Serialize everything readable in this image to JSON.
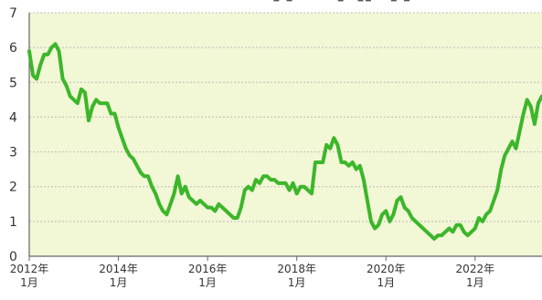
{
  "colors": {
    "plot_background": "#f2f7d6",
    "line": "#3cb62a",
    "grid": "#bdbdbd",
    "axis": "#666666"
  },
  "chart_data": {
    "type": "line",
    "title": "",
    "xlabel": "",
    "ylabel": "",
    "ylim": [
      0,
      7
    ],
    "xlim": [
      "2012-01",
      "2023-07"
    ],
    "yticks": [
      0,
      1,
      2,
      3,
      4,
      5,
      6,
      7
    ],
    "xticks": [
      {
        "year": "2012年",
        "month": "1月",
        "x": "2012-01"
      },
      {
        "year": "2014年",
        "month": "1月",
        "x": "2014-01"
      },
      {
        "year": "2016年",
        "month": "1月",
        "x": "2016-01"
      },
      {
        "year": "2018年",
        "month": "1月",
        "x": "2018-01"
      },
      {
        "year": "2020年",
        "month": "1月",
        "x": "2020-01"
      },
      {
        "year": "2022年",
        "month": "1月",
        "x": "2022-01"
      }
    ],
    "grid": true,
    "series": [
      {
        "x": [
          "2012-01",
          "2012-02",
          "2012-03",
          "2012-04",
          "2012-05",
          "2012-06",
          "2012-07",
          "2012-08",
          "2012-09",
          "2012-10",
          "2012-11",
          "2012-12",
          "2013-01",
          "2013-02",
          "2013-03",
          "2013-04",
          "2013-05",
          "2013-06",
          "2013-07",
          "2013-08",
          "2013-09",
          "2013-10",
          "2013-11",
          "2013-12",
          "2014-01",
          "2014-02",
          "2014-03",
          "2014-04",
          "2014-05",
          "2014-06",
          "2014-07",
          "2014-08",
          "2014-09",
          "2014-10",
          "2014-11",
          "2014-12",
          "2015-01",
          "2015-02",
          "2015-03",
          "2015-04",
          "2015-05",
          "2015-06",
          "2015-07",
          "2015-08",
          "2015-09",
          "2015-10",
          "2015-11",
          "2015-12",
          "2016-01",
          "2016-02",
          "2016-03",
          "2016-04",
          "2016-05",
          "2016-06",
          "2016-07",
          "2016-08",
          "2016-09",
          "2016-10",
          "2016-11",
          "2016-12",
          "2017-01",
          "2017-02",
          "2017-03",
          "2017-04",
          "2017-05",
          "2017-06",
          "2017-07",
          "2017-08",
          "2017-09",
          "2017-10",
          "2017-11",
          "2017-12",
          "2018-01",
          "2018-02",
          "2018-03",
          "2018-04",
          "2018-05",
          "2018-06",
          "2018-07",
          "2018-08",
          "2018-09",
          "2018-10",
          "2018-11",
          "2018-12",
          "2019-01",
          "2019-02",
          "2019-03",
          "2019-04",
          "2019-05",
          "2019-06",
          "2019-07",
          "2019-08",
          "2019-09",
          "2019-10",
          "2019-11",
          "2019-12",
          "2020-01",
          "2020-02",
          "2020-03",
          "2020-04",
          "2020-05",
          "2020-06",
          "2020-07",
          "2020-08",
          "2020-09",
          "2020-10",
          "2020-11",
          "2020-12",
          "2021-01",
          "2021-02",
          "2021-03",
          "2021-04",
          "2021-05",
          "2021-06",
          "2021-07",
          "2021-08",
          "2021-09",
          "2021-10",
          "2021-11",
          "2021-12",
          "2022-01",
          "2022-02",
          "2022-03",
          "2022-04",
          "2022-05",
          "2022-06",
          "2022-07",
          "2022-08",
          "2022-09",
          "2022-10",
          "2022-11",
          "2022-12",
          "2023-01",
          "2023-02",
          "2023-03",
          "2023-04",
          "2023-05",
          "2023-06",
          "2023-07"
        ],
        "values": [
          5.9,
          5.2,
          5.1,
          5.5,
          5.8,
          5.8,
          6.0,
          6.1,
          5.9,
          5.1,
          4.9,
          4.6,
          4.5,
          4.4,
          4.8,
          4.7,
          3.9,
          4.3,
          4.5,
          4.4,
          4.4,
          4.4,
          4.1,
          4.1,
          3.7,
          3.4,
          3.1,
          2.9,
          2.8,
          2.6,
          2.4,
          2.3,
          2.3,
          2.0,
          1.8,
          1.5,
          1.3,
          1.2,
          1.5,
          1.8,
          2.3,
          1.8,
          2.0,
          1.7,
          1.6,
          1.5,
          1.6,
          1.5,
          1.4,
          1.4,
          1.3,
          1.5,
          1.4,
          1.3,
          1.2,
          1.1,
          1.1,
          1.4,
          1.9,
          2.0,
          1.9,
          2.2,
          2.1,
          2.3,
          2.3,
          2.2,
          2.2,
          2.1,
          2.1,
          2.1,
          1.9,
          2.1,
          1.8,
          2.0,
          2.0,
          1.9,
          1.8,
          2.7,
          2.7,
          2.7,
          3.2,
          3.1,
          3.4,
          3.2,
          2.7,
          2.7,
          2.6,
          2.7,
          2.5,
          2.6,
          2.2,
          1.6,
          1.0,
          0.8,
          0.9,
          1.2,
          1.3,
          1.0,
          1.2,
          1.6,
          1.7,
          1.4,
          1.3,
          1.1,
          1.0,
          0.9,
          0.8,
          0.7,
          0.6,
          0.5,
          0.6,
          0.6,
          0.7,
          0.8,
          0.7,
          0.9,
          0.9,
          0.7,
          0.6,
          0.7,
          0.8,
          1.1,
          1.0,
          1.2,
          1.3,
          1.6,
          1.9,
          2.5,
          2.9,
          3.1,
          3.3,
          3.1,
          3.6,
          4.1,
          4.5,
          4.3,
          3.8,
          4.4,
          4.6
        ]
      }
    ]
  }
}
